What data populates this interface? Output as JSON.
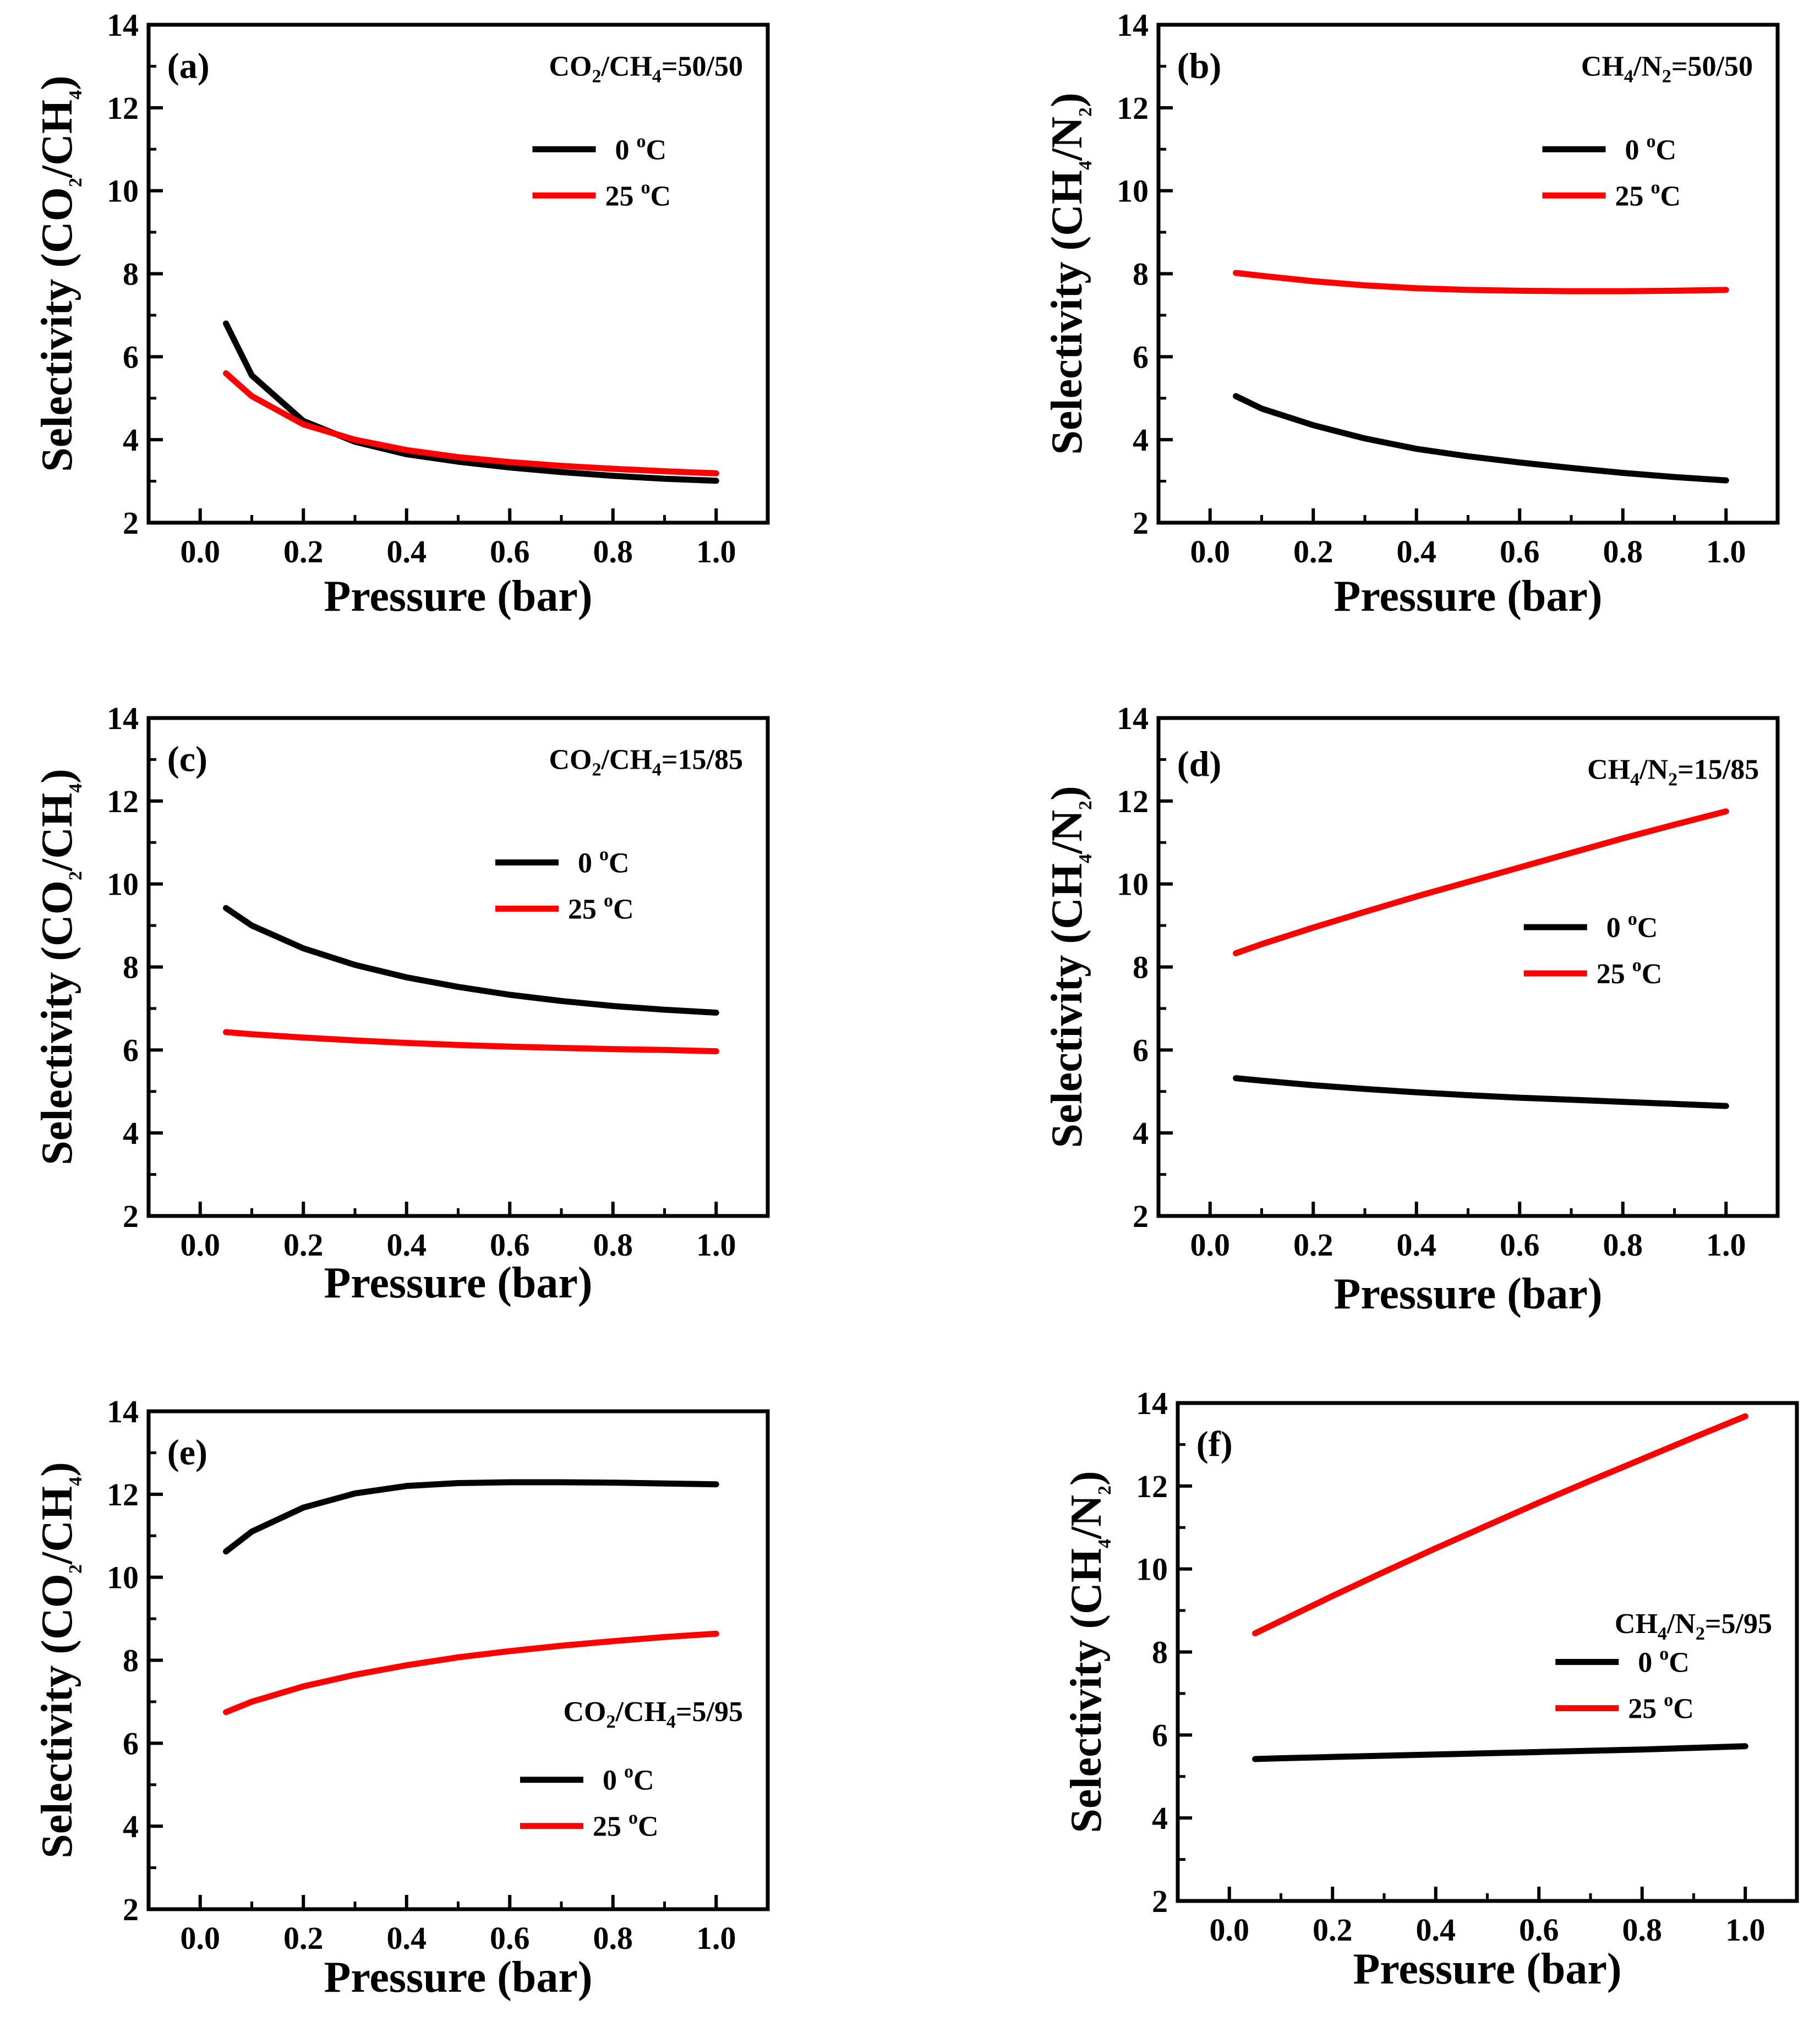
{
  "chart_data": [
    {
      "type": "line",
      "panel_label": "(a)",
      "mixture": {
        "g1": "CO",
        "s1": "2",
        "sep": "/CH",
        "s2": "4",
        "ratio": "=50/50"
      },
      "ylabel": {
        "pre": "Selectivity (CO",
        "s1": "2",
        "mid": "/CH",
        "s2": "4",
        "post": ")"
      },
      "xlabel": "Pressure (bar)",
      "xlim": [
        -0.1,
        1.1
      ],
      "ylim": [
        2,
        14
      ],
      "xticks": [
        "0.0",
        "0.2",
        "0.4",
        "0.6",
        "0.8",
        "1.0"
      ],
      "yticks": [
        "2",
        "4",
        "6",
        "8",
        "10",
        "12",
        "14"
      ],
      "legend": [
        {
          "temp": "0 ",
          "sup": "o",
          "unit": "C"
        },
        {
          "temp": "25 ",
          "sup": "o",
          "unit": "C"
        }
      ],
      "series": [
        {
          "name": "0 °C",
          "color": "#000000",
          "x": [
            0.05,
            0.1,
            0.2,
            0.3,
            0.4,
            0.5,
            0.6,
            0.7,
            0.8,
            0.9,
            1.0
          ],
          "values": [
            6.8,
            5.55,
            4.45,
            3.95,
            3.65,
            3.47,
            3.33,
            3.22,
            3.13,
            3.06,
            3.01
          ]
        },
        {
          "name": "25 °C",
          "color": "#ff0000",
          "x": [
            0.05,
            0.1,
            0.2,
            0.3,
            0.4,
            0.5,
            0.6,
            0.7,
            0.8,
            0.9,
            1.0
          ],
          "values": [
            5.6,
            5.05,
            4.37,
            4.0,
            3.75,
            3.58,
            3.46,
            3.37,
            3.3,
            3.24,
            3.19
          ]
        }
      ]
    },
    {
      "type": "line",
      "panel_label": "(b)",
      "mixture": {
        "g1": "CH",
        "s1": "4",
        "sep": "/N",
        "s2": "2",
        "ratio": "=50/50"
      },
      "ylabel": {
        "pre": "Selectivity (CH",
        "s1": "4",
        "mid": "/N",
        "s2": "2",
        "post": ")"
      },
      "xlabel": "Pressure (bar)",
      "xlim": [
        -0.1,
        1.1
      ],
      "ylim": [
        2,
        14
      ],
      "xticks": [
        "0.0",
        "0.2",
        "0.4",
        "0.6",
        "0.8",
        "1.0"
      ],
      "yticks": [
        "2",
        "4",
        "6",
        "8",
        "10",
        "12",
        "14"
      ],
      "legend": [
        {
          "temp": "0 ",
          "sup": "o",
          "unit": "C"
        },
        {
          "temp": "25 ",
          "sup": "o",
          "unit": "C"
        }
      ],
      "series": [
        {
          "name": "0 °C",
          "color": "#000000",
          "x": [
            0.05,
            0.1,
            0.2,
            0.3,
            0.4,
            0.5,
            0.6,
            0.7,
            0.8,
            0.9,
            1.0
          ],
          "values": [
            5.05,
            4.75,
            4.35,
            4.03,
            3.78,
            3.6,
            3.45,
            3.32,
            3.2,
            3.1,
            3.02
          ]
        },
        {
          "name": "25 °C",
          "color": "#ff0000",
          "x": [
            0.05,
            0.1,
            0.2,
            0.3,
            0.4,
            0.5,
            0.6,
            0.7,
            0.8,
            0.9,
            1.0
          ],
          "values": [
            8.02,
            7.95,
            7.82,
            7.72,
            7.65,
            7.61,
            7.59,
            7.58,
            7.58,
            7.59,
            7.61
          ]
        }
      ]
    },
    {
      "type": "line",
      "panel_label": "(c)",
      "mixture": {
        "g1": "CO",
        "s1": "2",
        "sep": "/CH",
        "s2": "4",
        "ratio": "=15/85"
      },
      "ylabel": {
        "pre": "Selectivity (CO",
        "s1": "2",
        "mid": "/CH",
        "s2": "4",
        "post": ")"
      },
      "xlabel": "Pressure (bar)",
      "xlim": [
        -0.1,
        1.1
      ],
      "ylim": [
        2,
        14
      ],
      "xticks": [
        "0.0",
        "0.2",
        "0.4",
        "0.6",
        "0.8",
        "1.0"
      ],
      "yticks": [
        "2",
        "4",
        "6",
        "8",
        "10",
        "12",
        "14"
      ],
      "legend": [
        {
          "temp": "0 ",
          "sup": "o",
          "unit": "C"
        },
        {
          "temp": "25 ",
          "sup": "o",
          "unit": "C"
        }
      ],
      "series": [
        {
          "name": "0 °C",
          "color": "#000000",
          "x": [
            0.05,
            0.1,
            0.2,
            0.3,
            0.4,
            0.5,
            0.6,
            0.7,
            0.8,
            0.9,
            1.0
          ],
          "values": [
            9.42,
            9.0,
            8.45,
            8.05,
            7.75,
            7.52,
            7.33,
            7.18,
            7.06,
            6.97,
            6.9
          ]
        },
        {
          "name": "25 °C",
          "color": "#ff0000",
          "x": [
            0.05,
            0.1,
            0.2,
            0.3,
            0.4,
            0.5,
            0.6,
            0.7,
            0.8,
            0.9,
            1.0
          ],
          "values": [
            6.43,
            6.38,
            6.3,
            6.23,
            6.17,
            6.12,
            6.08,
            6.05,
            6.02,
            6.0,
            5.97
          ]
        }
      ]
    },
    {
      "type": "line",
      "panel_label": "(d)",
      "mixture": {
        "g1": "CH",
        "s1": "4",
        "sep": "/N",
        "s2": "2",
        "ratio": "=15/85"
      },
      "ylabel": {
        "pre": "Selectivity (CH",
        "s1": "4",
        "mid": "/N",
        "s2": "2",
        "post": ")"
      },
      "xlabel": "Pressure (bar)",
      "xlim": [
        -0.1,
        1.1
      ],
      "ylim": [
        2,
        14
      ],
      "xticks": [
        "0.0",
        "0.2",
        "0.4",
        "0.6",
        "0.8",
        "1.0"
      ],
      "yticks": [
        "2",
        "4",
        "6",
        "8",
        "10",
        "12",
        "14"
      ],
      "legend": [
        {
          "temp": "0 ",
          "sup": "o",
          "unit": "C"
        },
        {
          "temp": "25 ",
          "sup": "o",
          "unit": "C"
        }
      ],
      "series": [
        {
          "name": "0 °C",
          "color": "#000000",
          "x": [
            0.05,
            0.1,
            0.2,
            0.3,
            0.4,
            0.5,
            0.6,
            0.7,
            0.8,
            0.9,
            1.0
          ],
          "values": [
            5.32,
            5.26,
            5.15,
            5.06,
            4.98,
            4.91,
            4.85,
            4.8,
            4.75,
            4.7,
            4.65
          ]
        },
        {
          "name": "25 °C",
          "color": "#ff0000",
          "x": [
            0.05,
            0.1,
            0.2,
            0.3,
            0.4,
            0.5,
            0.6,
            0.7,
            0.8,
            0.9,
            1.0
          ],
          "values": [
            8.33,
            8.55,
            8.95,
            9.33,
            9.7,
            10.05,
            10.4,
            10.75,
            11.1,
            11.43,
            11.75
          ]
        }
      ]
    },
    {
      "type": "line",
      "panel_label": "(e)",
      "mixture": {
        "g1": "CO",
        "s1": "2",
        "sep": "/CH",
        "s2": "4",
        "ratio": "=5/95"
      },
      "ylabel": {
        "pre": "Selectivity (CO",
        "s1": "2",
        "mid": "/CH",
        "s2": "4",
        "post": ")"
      },
      "xlabel": "Pressure (bar)",
      "xlim": [
        -0.1,
        1.1
      ],
      "ylim": [
        2,
        14
      ],
      "xticks": [
        "0.0",
        "0.2",
        "0.4",
        "0.6",
        "0.8",
        "1.0"
      ],
      "yticks": [
        "2",
        "4",
        "6",
        "8",
        "10",
        "12",
        "14"
      ],
      "legend": [
        {
          "temp": "0 ",
          "sup": "o",
          "unit": "C"
        },
        {
          "temp": "25 ",
          "sup": "o",
          "unit": "C"
        }
      ],
      "series": [
        {
          "name": "0 °C",
          "color": "#000000",
          "x": [
            0.05,
            0.1,
            0.2,
            0.3,
            0.4,
            0.5,
            0.6,
            0.7,
            0.8,
            0.9,
            1.0
          ],
          "values": [
            10.62,
            11.1,
            11.68,
            12.02,
            12.2,
            12.27,
            12.29,
            12.29,
            12.28,
            12.26,
            12.24
          ]
        },
        {
          "name": "25 °C",
          "color": "#ff0000",
          "x": [
            0.05,
            0.1,
            0.2,
            0.3,
            0.4,
            0.5,
            0.6,
            0.7,
            0.8,
            0.9,
            1.0
          ],
          "values": [
            6.75,
            7.0,
            7.37,
            7.65,
            7.88,
            8.07,
            8.22,
            8.35,
            8.46,
            8.56,
            8.64
          ]
        }
      ]
    },
    {
      "type": "line",
      "panel_label": "(f)",
      "mixture": {
        "g1": "CH",
        "s1": "4",
        "sep": "/N",
        "s2": "2",
        "ratio": "=5/95"
      },
      "ylabel": {
        "pre": "Selectivity (CH",
        "s1": "4",
        "mid": "/N",
        "s2": "2",
        "post": ")"
      },
      "xlabel": "Pressure (bar)",
      "xlim": [
        -0.1,
        1.1
      ],
      "ylim": [
        2,
        14
      ],
      "xticks": [
        "0.0",
        "0.2",
        "0.4",
        "0.6",
        "0.8",
        "1.0"
      ],
      "yticks": [
        "2",
        "4",
        "6",
        "8",
        "10",
        "12",
        "14"
      ],
      "legend": [
        {
          "temp": "0 ",
          "sup": "o",
          "unit": "C"
        },
        {
          "temp": "25 ",
          "sup": "o",
          "unit": "C"
        }
      ],
      "series": [
        {
          "name": "0 °C",
          "color": "#000000",
          "x": [
            0.05,
            0.1,
            0.2,
            0.3,
            0.4,
            0.5,
            0.6,
            0.7,
            0.8,
            0.9,
            1.0
          ],
          "values": [
            5.42,
            5.44,
            5.47,
            5.5,
            5.53,
            5.56,
            5.59,
            5.62,
            5.65,
            5.69,
            5.73
          ]
        },
        {
          "name": "25 °C",
          "color": "#ff0000",
          "x": [
            0.05,
            0.1,
            0.2,
            0.3,
            0.4,
            0.5,
            0.6,
            0.7,
            0.8,
            0.9,
            1.0
          ],
          "values": [
            8.45,
            8.75,
            9.35,
            9.93,
            10.5,
            11.05,
            11.6,
            12.13,
            12.65,
            13.17,
            13.68
          ]
        }
      ]
    }
  ]
}
